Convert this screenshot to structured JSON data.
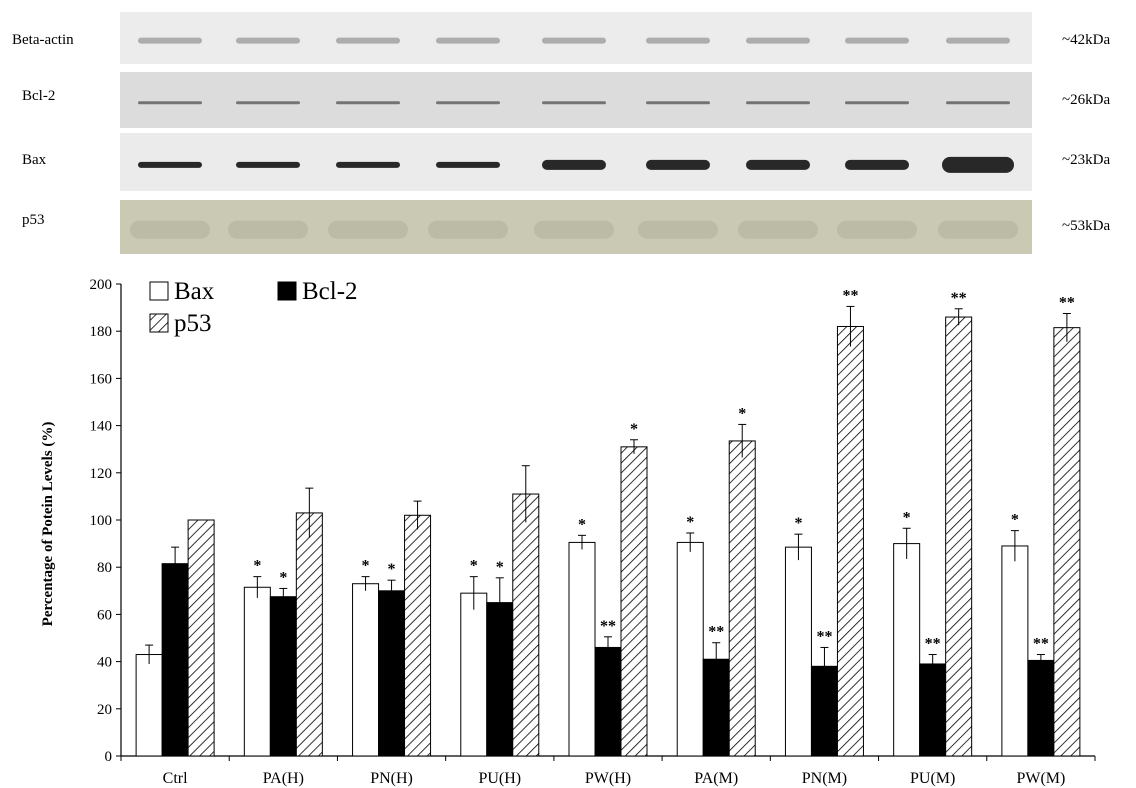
{
  "blots": [
    {
      "name": "Beta-actin",
      "size": "~42kDa",
      "bg": "#ececec",
      "band": "#7a7a7a"
    },
    {
      "name": "Bcl-2",
      "size": "~26kDa",
      "bg": "#dcdcdc",
      "band": "#5a5a5a"
    },
    {
      "name": "Bax",
      "size": "~23kDa",
      "bg": "#ebebeb",
      "band": "#1e1e1e"
    },
    {
      "name": "p53",
      "size": "~53kDa",
      "bg": "#c9c9b4",
      "band": "#9c9c88"
    }
  ],
  "chart_data": {
    "type": "bar",
    "ylabel": "Percentage of Potein Levels (%)",
    "ylim": [
      0,
      200
    ],
    "yticks": [
      0,
      20,
      40,
      60,
      80,
      100,
      120,
      140,
      160,
      180,
      200
    ],
    "categories": [
      "Ctrl",
      "PA(H)",
      "PN(H)",
      "PU(H)",
      "PW(H)",
      "PA(M)",
      "PN(M)",
      "PU(M)",
      "PW(M)"
    ],
    "series": [
      {
        "name": "Bax",
        "fill": "white",
        "values": [
          43,
          71.5,
          73,
          69,
          90.5,
          90.5,
          88.5,
          90,
          89
        ],
        "errors": [
          4,
          4.5,
          3,
          7,
          3,
          4,
          5.5,
          6.5,
          6.5
        ],
        "marks": [
          "",
          "*",
          "*",
          "*",
          "*",
          "*",
          "*",
          "*",
          "*"
        ]
      },
      {
        "name": "Bcl-2",
        "fill": "black",
        "values": [
          81.5,
          67.5,
          70,
          65,
          46,
          41,
          38,
          39,
          40.5
        ],
        "errors": [
          7,
          3.5,
          4.5,
          10.5,
          4.5,
          7,
          8,
          4,
          2.5
        ],
        "marks": [
          "",
          "*",
          "*",
          "*",
          "**",
          "**",
          "**",
          "**",
          "**"
        ]
      },
      {
        "name": "p53",
        "fill": "hatch",
        "values": [
          100,
          103,
          102,
          111,
          131,
          133.5,
          182,
          186,
          181.5
        ],
        "errors": [
          0,
          10.5,
          6,
          12,
          3,
          7,
          8.5,
          3.5,
          6
        ],
        "marks": [
          "",
          "",
          "",
          "",
          "*",
          "*",
          "**",
          "**",
          "**"
        ]
      }
    ],
    "legend": {
      "placement": "top-left"
    },
    "grid": false
  }
}
